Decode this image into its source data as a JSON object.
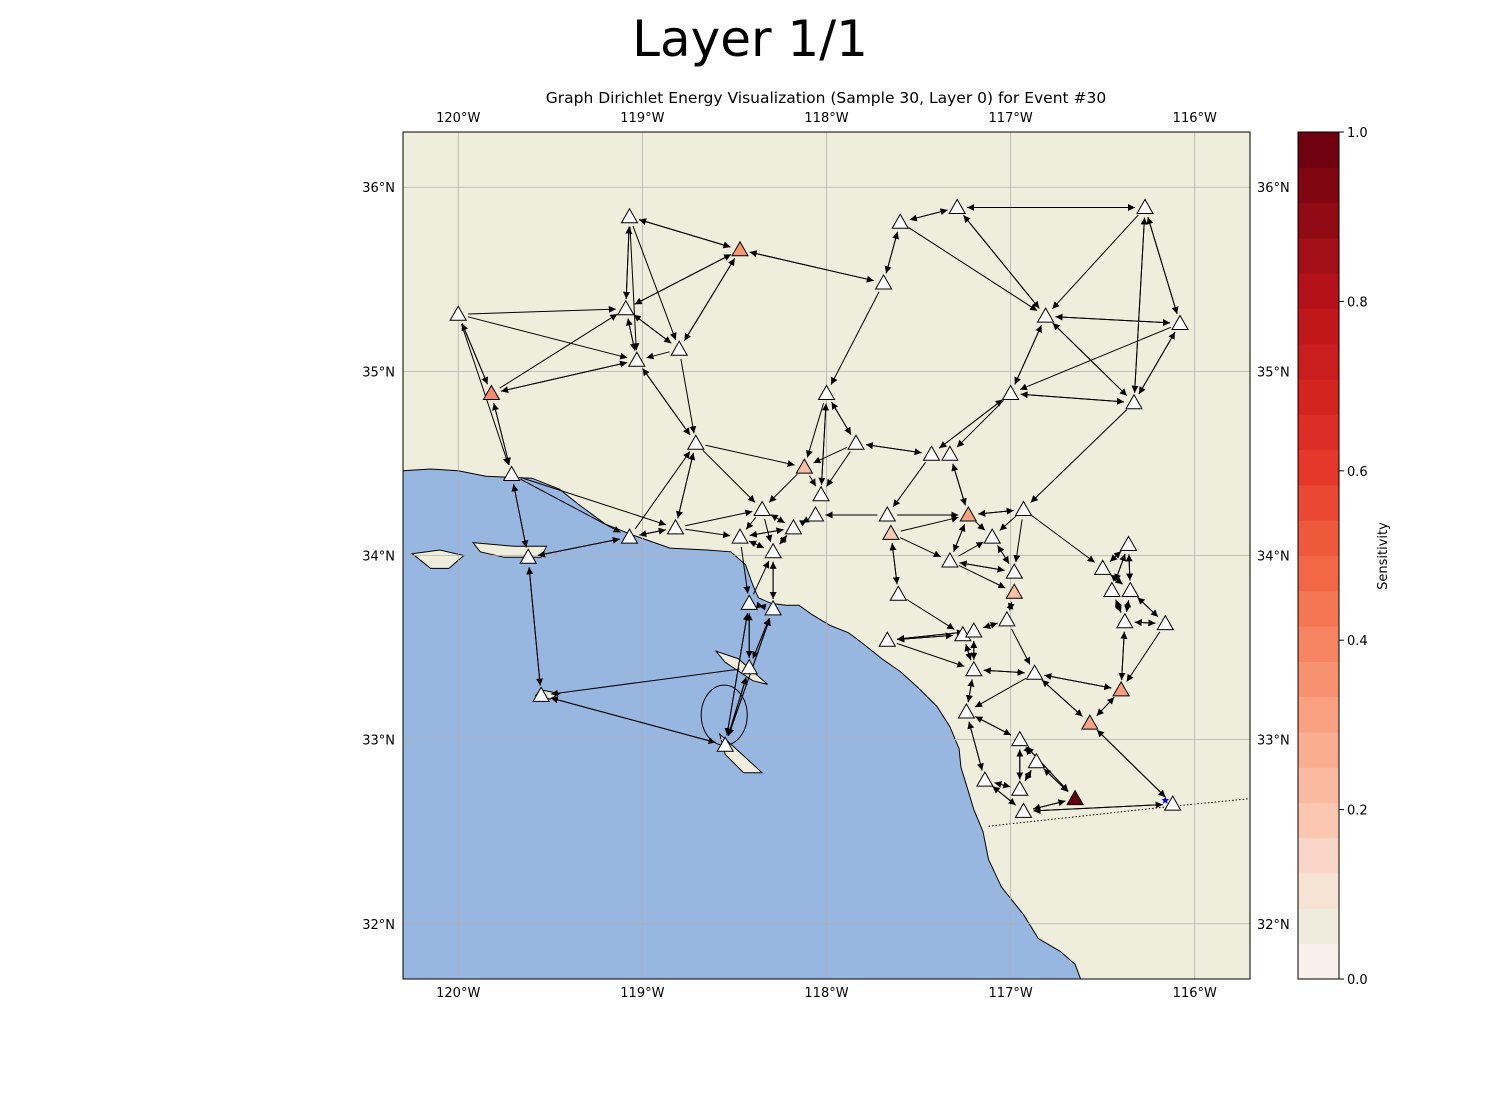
{
  "figure": {
    "title": "Layer 1/1",
    "subtitle": "Graph Dirichlet Energy Visualization (Sample 30, Layer 0) for Event #30"
  },
  "map": {
    "lon_range": [
      -120.3,
      -115.7
    ],
    "lat_range": [
      31.7,
      36.3
    ],
    "lon_ticks": [
      {
        "value": -120,
        "label": "120°W"
      },
      {
        "value": -119,
        "label": "119°W"
      },
      {
        "value": -118,
        "label": "118°W"
      },
      {
        "value": -117,
        "label": "117°W"
      },
      {
        "value": -116,
        "label": "116°W"
      }
    ],
    "lat_ticks": [
      {
        "value": 36,
        "label": "36°N"
      },
      {
        "value": 35,
        "label": "35°N"
      },
      {
        "value": 34,
        "label": "34°N"
      },
      {
        "value": 33,
        "label": "33°N"
      },
      {
        "value": 32,
        "label": "32°N"
      }
    ],
    "gridlines": true,
    "colors": {
      "land": "#efeddb",
      "ocean": "#97b6e0",
      "grid": "#b0b0b0",
      "edge": "#000000"
    },
    "coastline": [
      [
        -120.3,
        34.46
      ],
      [
        -120.15,
        34.47
      ],
      [
        -120.0,
        34.46
      ],
      [
        -119.85,
        34.43
      ],
      [
        -119.6,
        34.42
      ],
      [
        -119.45,
        34.36
      ],
      [
        -119.35,
        34.28
      ],
      [
        -119.2,
        34.17
      ],
      [
        -119.05,
        34.11
      ],
      [
        -118.85,
        34.04
      ],
      [
        -118.65,
        34.03
      ],
      [
        -118.52,
        34.02
      ],
      [
        -118.44,
        33.95
      ],
      [
        -118.4,
        33.84
      ],
      [
        -118.37,
        33.77
      ],
      [
        -118.3,
        33.74
      ],
      [
        -118.22,
        33.73
      ],
      [
        -118.15,
        33.73
      ],
      [
        -118.08,
        33.68
      ],
      [
        -117.98,
        33.62
      ],
      [
        -117.88,
        33.58
      ],
      [
        -117.8,
        33.52
      ],
      [
        -117.7,
        33.44
      ],
      [
        -117.6,
        33.37
      ],
      [
        -117.5,
        33.28
      ],
      [
        -117.4,
        33.18
      ],
      [
        -117.33,
        33.07
      ],
      [
        -117.28,
        32.95
      ],
      [
        -117.27,
        32.85
      ],
      [
        -117.23,
        32.72
      ],
      [
        -117.2,
        32.62
      ],
      [
        -117.15,
        32.5
      ],
      [
        -117.12,
        32.35
      ],
      [
        -117.05,
        32.2
      ],
      [
        -116.93,
        32.05
      ],
      [
        -116.85,
        31.92
      ],
      [
        -116.73,
        31.85
      ],
      [
        -116.65,
        31.78
      ],
      [
        -116.62,
        31.7
      ]
    ],
    "islands": [
      [
        [
          -120.25,
          34.01
        ],
        [
          -120.1,
          34.03
        ],
        [
          -119.97,
          34.0
        ],
        [
          -120.05,
          33.93
        ],
        [
          -120.15,
          33.93
        ]
      ],
      [
        [
          -119.92,
          34.07
        ],
        [
          -119.7,
          34.05
        ],
        [
          -119.52,
          34.05
        ],
        [
          -119.55,
          33.99
        ],
        [
          -119.75,
          33.99
        ],
        [
          -119.88,
          34.02
        ]
      ],
      [
        [
          -119.55,
          33.27
        ],
        [
          -119.45,
          33.25
        ],
        [
          -119.5,
          33.22
        ],
        [
          -119.58,
          33.24
        ]
      ],
      [
        [
          -118.6,
          33.48
        ],
        [
          -118.48,
          33.44
        ],
        [
          -118.32,
          33.3
        ],
        [
          -118.4,
          33.32
        ],
        [
          -118.55,
          33.42
        ]
      ],
      [
        [
          -118.58,
          33.03
        ],
        [
          -118.48,
          32.94
        ],
        [
          -118.35,
          32.82
        ],
        [
          -118.45,
          32.82
        ],
        [
          -118.55,
          32.92
        ]
      ]
    ],
    "border": [
      [
        -117.12,
        32.53
      ],
      [
        -116.2,
        32.63
      ],
      [
        -115.7,
        32.68
      ]
    ]
  },
  "stations": [
    {
      "lon": -119.07,
      "lat": 35.84,
      "s": 0
    },
    {
      "lon": -118.47,
      "lat": 35.66,
      "s": 0.34
    },
    {
      "lon": -117.6,
      "lat": 35.81,
      "s": 0
    },
    {
      "lon": -117.29,
      "lat": 35.89,
      "s": 0
    },
    {
      "lon": -116.27,
      "lat": 35.89,
      "s": 0
    },
    {
      "lon": -117.69,
      "lat": 35.48,
      "s": 0
    },
    {
      "lon": -120.0,
      "lat": 35.31,
      "s": 0
    },
    {
      "lon": -119.09,
      "lat": 35.34,
      "s": 0
    },
    {
      "lon": -118.8,
      "lat": 35.12,
      "s": 0
    },
    {
      "lon": -119.03,
      "lat": 35.06,
      "s": 0
    },
    {
      "lon": -116.81,
      "lat": 35.3,
      "s": 0
    },
    {
      "lon": -116.08,
      "lat": 35.26,
      "s": 0
    },
    {
      "lon": -119.82,
      "lat": 34.88,
      "s": 0.37
    },
    {
      "lon": -118.0,
      "lat": 34.88,
      "s": 0
    },
    {
      "lon": -117.0,
      "lat": 34.88,
      "s": 0
    },
    {
      "lon": -116.33,
      "lat": 34.83,
      "s": 0
    },
    {
      "lon": -118.71,
      "lat": 34.61,
      "s": 0
    },
    {
      "lon": -117.84,
      "lat": 34.61,
      "s": 0
    },
    {
      "lon": -117.43,
      "lat": 34.55,
      "s": 0
    },
    {
      "lon": -117.33,
      "lat": 34.55,
      "s": 0
    },
    {
      "lon": -118.12,
      "lat": 34.48,
      "s": 0.22
    },
    {
      "lon": -119.71,
      "lat": 34.44,
      "s": 0
    },
    {
      "lon": -118.03,
      "lat": 34.33,
      "s": 0
    },
    {
      "lon": -118.35,
      "lat": 34.25,
      "s": 0
    },
    {
      "lon": -118.06,
      "lat": 34.22,
      "s": 0
    },
    {
      "lon": -117.67,
      "lat": 34.22,
      "s": 0
    },
    {
      "lon": -117.23,
      "lat": 34.22,
      "s": 0.31
    },
    {
      "lon": -116.93,
      "lat": 34.25,
      "s": 0
    },
    {
      "lon": -118.82,
      "lat": 34.15,
      "s": 0
    },
    {
      "lon": -118.18,
      "lat": 34.15,
      "s": 0
    },
    {
      "lon": -117.65,
      "lat": 34.12,
      "s": 0.18
    },
    {
      "lon": -119.07,
      "lat": 34.1,
      "s": 0
    },
    {
      "lon": -118.47,
      "lat": 34.1,
      "s": 0
    },
    {
      "lon": -117.1,
      "lat": 34.1,
      "s": 0
    },
    {
      "lon": -119.62,
      "lat": 33.99,
      "s": 0
    },
    {
      "lon": -118.29,
      "lat": 34.02,
      "s": 0
    },
    {
      "lon": -117.33,
      "lat": 33.97,
      "s": 0
    },
    {
      "lon": -116.36,
      "lat": 34.06,
      "s": 0
    },
    {
      "lon": -116.5,
      "lat": 33.93,
      "s": 0
    },
    {
      "lon": -116.98,
      "lat": 33.91,
      "s": 0
    },
    {
      "lon": -117.61,
      "lat": 33.79,
      "s": 0
    },
    {
      "lon": -116.98,
      "lat": 33.8,
      "s": 0.22
    },
    {
      "lon": -116.45,
      "lat": 33.81,
      "s": 0
    },
    {
      "lon": -116.35,
      "lat": 33.81,
      "s": 0
    },
    {
      "lon": -118.42,
      "lat": 33.74,
      "s": 0
    },
    {
      "lon": -118.29,
      "lat": 33.71,
      "s": 0
    },
    {
      "lon": -117.02,
      "lat": 33.65,
      "s": 0
    },
    {
      "lon": -117.26,
      "lat": 33.57,
      "s": 0
    },
    {
      "lon": -117.2,
      "lat": 33.59,
      "s": 0
    },
    {
      "lon": -116.38,
      "lat": 33.64,
      "s": 0
    },
    {
      "lon": -116.16,
      "lat": 33.63,
      "s": 0
    },
    {
      "lon": -117.67,
      "lat": 33.54,
      "s": 0
    },
    {
      "lon": -118.42,
      "lat": 33.39,
      "s": 0
    },
    {
      "lon": -117.2,
      "lat": 33.38,
      "s": 0
    },
    {
      "lon": -116.87,
      "lat": 33.36,
      "s": 0
    },
    {
      "lon": -119.55,
      "lat": 33.24,
      "s": 0
    },
    {
      "lon": -116.4,
      "lat": 33.27,
      "s": 0.32
    },
    {
      "lon": -117.24,
      "lat": 33.15,
      "s": 0
    },
    {
      "lon": -116.57,
      "lat": 33.09,
      "s": 0.3
    },
    {
      "lon": -116.95,
      "lat": 33.0,
      "s": 0
    },
    {
      "lon": -118.55,
      "lat": 32.97,
      "s": 0
    },
    {
      "lon": -116.86,
      "lat": 32.88,
      "s": 0
    },
    {
      "lon": -117.14,
      "lat": 32.78,
      "s": 0
    },
    {
      "lon": -116.95,
      "lat": 32.73,
      "s": 0
    },
    {
      "lon": -116.65,
      "lat": 32.68,
      "s": 1.0
    },
    {
      "lon": -116.93,
      "lat": 32.61,
      "s": 0
    },
    {
      "lon": -116.12,
      "lat": 32.65,
      "s": 0
    }
  ],
  "event": {
    "lon": -116.16,
    "lat": 32.67
  },
  "edges": [
    [
      0,
      1
    ],
    [
      1,
      0
    ],
    [
      0,
      7
    ],
    [
      7,
      0
    ],
    [
      0,
      9
    ],
    [
      0,
      8
    ],
    [
      1,
      5
    ],
    [
      5,
      1
    ],
    [
      1,
      7
    ],
    [
      7,
      1
    ],
    [
      1,
      8
    ],
    [
      8,
      1
    ],
    [
      2,
      3
    ],
    [
      3,
      2
    ],
    [
      2,
      5
    ],
    [
      5,
      2
    ],
    [
      3,
      4
    ],
    [
      4,
      3
    ],
    [
      3,
      10
    ],
    [
      10,
      3
    ],
    [
      2,
      10
    ],
    [
      4,
      11
    ],
    [
      11,
      4
    ],
    [
      4,
      10
    ],
    [
      4,
      15
    ],
    [
      15,
      4
    ],
    [
      5,
      13
    ],
    [
      6,
      7
    ],
    [
      6,
      9
    ],
    [
      6,
      12
    ],
    [
      12,
      6
    ],
    [
      6,
      21
    ],
    [
      7,
      8
    ],
    [
      8,
      7
    ],
    [
      7,
      9
    ],
    [
      9,
      7
    ],
    [
      12,
      9
    ],
    [
      9,
      12
    ],
    [
      12,
      7
    ],
    [
      12,
      21
    ],
    [
      21,
      12
    ],
    [
      9,
      16
    ],
    [
      16,
      9
    ],
    [
      8,
      16
    ],
    [
      8,
      9
    ],
    [
      10,
      11
    ],
    [
      11,
      10
    ],
    [
      10,
      14
    ],
    [
      14,
      10
    ],
    [
      10,
      15
    ],
    [
      15,
      10
    ],
    [
      11,
      15
    ],
    [
      15,
      11
    ],
    [
      11,
      14
    ],
    [
      14,
      15
    ],
    [
      15,
      14
    ],
    [
      14,
      18
    ],
    [
      18,
      14
    ],
    [
      14,
      19
    ],
    [
      15,
      27
    ],
    [
      13,
      17
    ],
    [
      17,
      13
    ],
    [
      13,
      20
    ],
    [
      13,
      22
    ],
    [
      22,
      13
    ],
    [
      16,
      20
    ],
    [
      16,
      23
    ],
    [
      16,
      28
    ],
    [
      28,
      16
    ],
    [
      31,
      16
    ],
    [
      17,
      20
    ],
    [
      17,
      22
    ],
    [
      17,
      18
    ],
    [
      18,
      17
    ],
    [
      18,
      19
    ],
    [
      19,
      18
    ],
    [
      18,
      25
    ],
    [
      19,
      26
    ],
    [
      26,
      19
    ],
    [
      20,
      22
    ],
    [
      20,
      23
    ],
    [
      21,
      34
    ],
    [
      34,
      21
    ],
    [
      21,
      31
    ],
    [
      21,
      28
    ],
    [
      34,
      31
    ],
    [
      31,
      34
    ],
    [
      31,
      28
    ],
    [
      28,
      31
    ],
    [
      28,
      23
    ],
    [
      28,
      32
    ],
    [
      23,
      29
    ],
    [
      29,
      23
    ],
    [
      23,
      32
    ],
    [
      23,
      35
    ],
    [
      24,
      29
    ],
    [
      29,
      24
    ],
    [
      24,
      22
    ],
    [
      22,
      24
    ],
    [
      25,
      24
    ],
    [
      25,
      26
    ],
    [
      26,
      27
    ],
    [
      27,
      26
    ],
    [
      26,
      33
    ],
    [
      25,
      30
    ],
    [
      30,
      26
    ],
    [
      26,
      36
    ],
    [
      36,
      26
    ],
    [
      27,
      33
    ],
    [
      27,
      39
    ],
    [
      33,
      39
    ],
    [
      39,
      33
    ],
    [
      36,
      39
    ],
    [
      39,
      36
    ],
    [
      36,
      33
    ],
    [
      30,
      36
    ],
    [
      30,
      40
    ],
    [
      40,
      30
    ],
    [
      29,
      32
    ],
    [
      32,
      29
    ],
    [
      29,
      35
    ],
    [
      35,
      29
    ],
    [
      32,
      35
    ],
    [
      35,
      32
    ],
    [
      32,
      44
    ],
    [
      44,
      35
    ],
    [
      35,
      45
    ],
    [
      45,
      35
    ],
    [
      34,
      55
    ],
    [
      55,
      34
    ],
    [
      44,
      45
    ],
    [
      45,
      44
    ],
    [
      44,
      52
    ],
    [
      52,
      44
    ],
    [
      45,
      52
    ],
    [
      52,
      45
    ],
    [
      44,
      60
    ],
    [
      60,
      44
    ],
    [
      45,
      60
    ],
    [
      60,
      45
    ],
    [
      52,
      60
    ],
    [
      60,
      52
    ],
    [
      52,
      55
    ],
    [
      55,
      60
    ],
    [
      60,
      55
    ],
    [
      60,
      52
    ],
    [
      37,
      38
    ],
    [
      38,
      37
    ],
    [
      37,
      42
    ],
    [
      42,
      37
    ],
    [
      37,
      43
    ],
    [
      43,
      37
    ],
    [
      38,
      42
    ],
    [
      42,
      38
    ],
    [
      38,
      43
    ],
    [
      43,
      38
    ],
    [
      42,
      43
    ],
    [
      43,
      42
    ],
    [
      42,
      49
    ],
    [
      49,
      42
    ],
    [
      43,
      49
    ],
    [
      49,
      43
    ],
    [
      43,
      50
    ],
    [
      50,
      43
    ],
    [
      49,
      50
    ],
    [
      50,
      49
    ],
    [
      49,
      56
    ],
    [
      56,
      49
    ],
    [
      50,
      56
    ],
    [
      27,
      38
    ],
    [
      39,
      41
    ],
    [
      41,
      39
    ],
    [
      36,
      41
    ],
    [
      40,
      47
    ],
    [
      41,
      46
    ],
    [
      46,
      41
    ],
    [
      46,
      48
    ],
    [
      48,
      46
    ],
    [
      47,
      48
    ],
    [
      48,
      47
    ],
    [
      47,
      51
    ],
    [
      51,
      47
    ],
    [
      48,
      51
    ],
    [
      51,
      48
    ],
    [
      51,
      53
    ],
    [
      47,
      53
    ],
    [
      53,
      47
    ],
    [
      48,
      53
    ],
    [
      53,
      48
    ],
    [
      53,
      54
    ],
    [
      54,
      53
    ],
    [
      53,
      57
    ],
    [
      57,
      53
    ],
    [
      54,
      57
    ],
    [
      46,
      54
    ],
    [
      54,
      56
    ],
    [
      56,
      54
    ],
    [
      54,
      58
    ],
    [
      58,
      54
    ],
    [
      56,
      58
    ],
    [
      58,
      56
    ],
    [
      57,
      59
    ],
    [
      59,
      57
    ],
    [
      57,
      62
    ],
    [
      62,
      57
    ],
    [
      59,
      61
    ],
    [
      61,
      59
    ],
    [
      59,
      63
    ],
    [
      63,
      59
    ],
    [
      61,
      63
    ],
    [
      63,
      61
    ],
    [
      61,
      64
    ],
    [
      64,
      61
    ],
    [
      62,
      63
    ],
    [
      63,
      62
    ],
    [
      62,
      65
    ],
    [
      65,
      62
    ],
    [
      63,
      65
    ],
    [
      65,
      63
    ],
    [
      64,
      65
    ],
    [
      65,
      64
    ],
    [
      59,
      64
    ],
    [
      64,
      59
    ],
    [
      65,
      66
    ],
    [
      66,
      65
    ],
    [
      66,
      58
    ],
    [
      58,
      66
    ]
  ],
  "colorbar": {
    "label": "Sensitivity",
    "ticks": [
      {
        "value": 0.0,
        "label": "0.0"
      },
      {
        "value": 0.2,
        "label": "0.2"
      },
      {
        "value": 0.4,
        "label": "0.4"
      },
      {
        "value": 0.6,
        "label": "0.6"
      },
      {
        "value": 0.8,
        "label": "0.8"
      },
      {
        "value": 1.0,
        "label": "1.0"
      }
    ],
    "stops": [
      {
        "value": 0.0,
        "color": "#ffffff"
      },
      {
        "value": 0.035,
        "color": "#f5e6e3"
      },
      {
        "value": 0.07,
        "color": "#efeddb"
      },
      {
        "value": 0.13,
        "color": "#f9dccf"
      },
      {
        "value": 0.2,
        "color": "#fbc3ab"
      },
      {
        "value": 0.3,
        "color": "#f9a486"
      },
      {
        "value": 0.4,
        "color": "#f6825f"
      },
      {
        "value": 0.5,
        "color": "#f1613f"
      },
      {
        "value": 0.6,
        "color": "#e6392b"
      },
      {
        "value": 0.7,
        "color": "#d1211f"
      },
      {
        "value": 0.8,
        "color": "#b91319"
      },
      {
        "value": 0.9,
        "color": "#8f0b14"
      },
      {
        "value": 1.0,
        "color": "#67000d"
      }
    ]
  }
}
